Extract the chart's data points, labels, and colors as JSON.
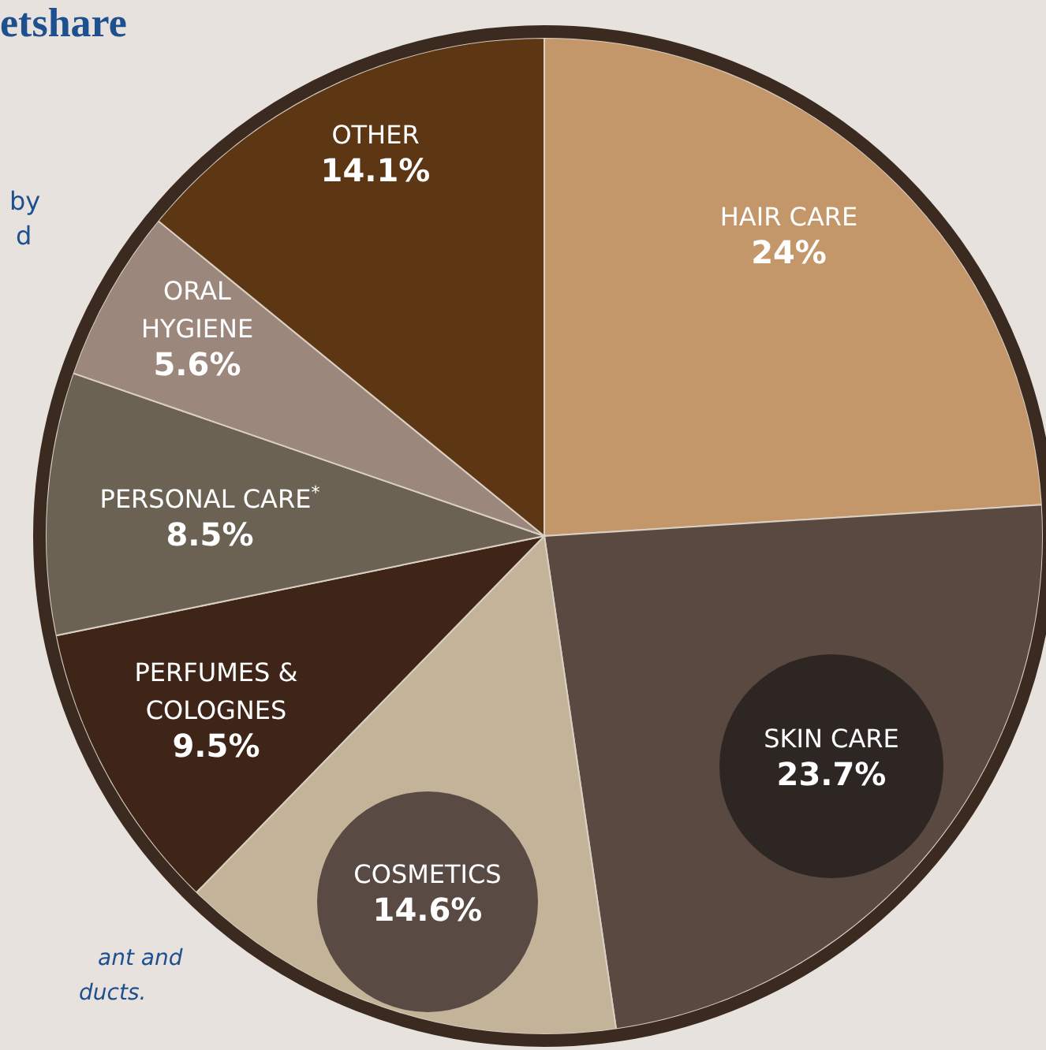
{
  "chart_data": {
    "type": "pie",
    "title": "etshare",
    "categories": [
      "HAIR CARE",
      "SKIN CARE",
      "COSMETICS",
      "PERFUMES & COLOGNES",
      "PERSONAL CARE$^{*}$",
      "ORAL HYGIENE",
      "OTHER"
    ],
    "values": [
      24,
      23.7,
      14.6,
      9.5,
      8.5,
      5.6,
      14.1
    ],
    "value_labels": [
      "24%",
      "23.7%",
      "14.6%",
      "9.5%",
      "8.5%",
      "5.6%",
      "14.1%"
    ],
    "colors": [
      "#c4976a",
      "#594940",
      "#c3b499",
      "#3e2518",
      "#6c6254",
      "#9b877b",
      "#5d3614"
    ],
    "legend": false,
    "annotations": [
      "by",
      "d",
      "ant and",
      "ducts."
    ]
  }
}
